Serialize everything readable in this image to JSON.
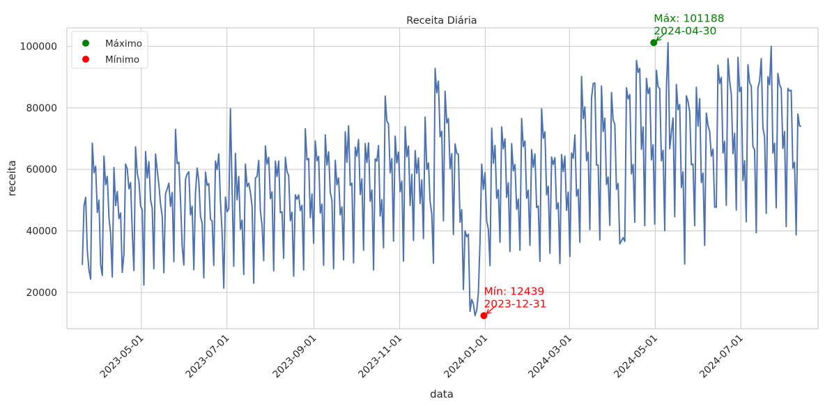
{
  "chart_data": {
    "type": "line",
    "title": "Receita Diária",
    "xlabel": "data",
    "ylabel": "receita",
    "grid": true,
    "legend_position": "top-left",
    "x_range": [
      "2023-03-09",
      "2024-08-25"
    ],
    "ylim": [
      8200,
      106000
    ],
    "x_ticks": [
      "2023-05-01",
      "2023-07-01",
      "2023-09-01",
      "2023-11-01",
      "2024-01-01",
      "2024-03-01",
      "2024-05-01",
      "2024-07-01"
    ],
    "y_ticks": [
      20000,
      40000,
      60000,
      80000,
      100000
    ],
    "y_tick_labels": [
      "20000",
      "40000",
      "60000",
      "80000",
      "100000"
    ],
    "line_color": "#4c72b0",
    "series": [
      {
        "start_date": "2023-03-20",
        "end_date": "2024-08-13",
        "values": [
          28900,
          48100,
          50900,
          33500,
          27200,
          24300,
          68500,
          58900,
          61000,
          46000,
          50000,
          29000,
          25500,
          64300,
          55000,
          57700,
          44500,
          39000,
          25000,
          60600,
          48200,
          52800,
          44000,
          45800,
          26500,
          32500,
          61700,
          60200,
          53700,
          55700,
          39700,
          27100,
          67300,
          58700,
          56200,
          48100,
          46900,
          22400,
          65800,
          57200,
          62500,
          50200,
          47300,
          27700,
          65000,
          59800,
          55000,
          48700,
          44800,
          26400,
          52100,
          53600,
          55500,
          48000,
          52500,
          30000,
          73000,
          61900,
          62300,
          50000,
          35000,
          28900,
          56700,
          58500,
          59200,
          45200,
          48000,
          27400,
          52300,
          60400,
          56200,
          44800,
          42500,
          24700,
          59100,
          54800,
          55400,
          43800,
          43200,
          28800,
          62700,
          59900,
          65000,
          49600,
          39400,
          21400,
          51000,
          46200,
          47200,
          79700,
          53700,
          28500,
          65200,
          50100,
          57700,
          40500,
          43500,
          25800,
          61700,
          54400,
          55500,
          52500,
          48000,
          23000,
          57200,
          57700,
          62900,
          46500,
          41800,
          30300,
          67600,
          61700,
          63900,
          50500,
          52700,
          27000,
          62700,
          57700,
          62700,
          45900,
          46200,
          31100,
          63900,
          59300,
          58000,
          43300,
          46100,
          25300,
          51700,
          50300,
          51700,
          46600,
          48300,
          27300,
          73200,
          63100,
          63500,
          44300,
          52000,
          36000,
          69200,
          62800,
          64200,
          45800,
          48700,
          28800,
          71200,
          61400,
          65700,
          52500,
          50000,
          27700,
          62900,
          55000,
          57200,
          45200,
          47800,
          30600,
          72200,
          62300,
          74200,
          54800,
          55500,
          29600,
          67200,
          64300,
          69700,
          51800,
          56900,
          33700,
          68400,
          62200,
          68600,
          49600,
          53300,
          27300,
          63400,
          62700,
          67700,
          44800,
          50200,
          34500,
          83800,
          75700,
          74800,
          58900,
          63500,
          36700,
          70800,
          62100,
          65600,
          52700,
          56200,
          30200,
          73900,
          64100,
          67600,
          48300,
          58400,
          36900,
          66100,
          58700,
          63700,
          48900,
          56600,
          37500,
          77000,
          60000,
          62100,
          49600,
          45500,
          29500,
          92800,
          84900,
          88700,
          70600,
          72400,
          43300,
          85400,
          75100,
          76500,
          60200,
          65100,
          38800,
          68300,
          65200,
          64900,
          42800,
          46900,
          20900,
          40000,
          38100,
          38900,
          13800,
          17700,
          16300,
          12439,
          14200,
          19800,
          36900,
          61700,
          53500,
          58900,
          43300,
          40500,
          28700,
          73400,
          62000,
          67800,
          50600,
          53400,
          36300,
          73800,
          66700,
          69900,
          50900,
          55600,
          33300,
          68400,
          59500,
          61600,
          47000,
          50300,
          33700,
          76500,
          67400,
          69200,
          50600,
          53200,
          35300,
          66400,
          60700,
          65000,
          47600,
          48100,
          30100,
          79700,
          70100,
          72200,
          51700,
          54500,
          32700,
          64000,
          61600,
          63800,
          47100,
          49100,
          29400,
          64800,
          59300,
          64300,
          46700,
          52600,
          31700,
          65300,
          63600,
          71200,
          51300,
          53500,
          36300,
          90200,
          76500,
          80300,
          62800,
          65600,
          40400,
          83100,
          87900,
          88100,
          61400,
          61400,
          37000,
          87100,
          72300,
          76600,
          55100,
          57500,
          41800,
          85000,
          76000,
          74700,
          53500,
          55400,
          35800,
          36800,
          37800,
          36600,
          86500,
          82900,
          84300,
          58500,
          61600,
          42800,
          95400,
          91500,
          92800,
          66500,
          73800,
          41700,
          89600,
          84600,
          86500,
          63100,
          68000,
          42200,
          92200,
          86900,
          86200,
          62800,
          66200,
          40100,
          86100,
          101188,
          66700,
          72000,
          76700,
          44600,
          87600,
          79400,
          81100,
          54100,
          59200,
          29200,
          83900,
          82100,
          78600,
          61500,
          61700,
          41700,
          86700,
          74000,
          83000,
          55700,
          58800,
          35300,
          78300,
          74300,
          72300,
          64300,
          66600,
          47700,
          47700,
          93900,
          87900,
          89900,
          65300,
          69100,
          48300,
          96000,
          88800,
          84500,
          65100,
          71700,
          46800,
          96400,
          85300,
          86700,
          56400,
          62800,
          43000,
          94000,
          88300,
          87100,
          67500,
          66300,
          39400,
          86500,
          88700,
          96000,
          73500,
          70600,
          45700,
          90100,
          87500,
          100000,
          65300,
          68500,
          47500,
          91200,
          87600,
          86300,
          66800,
          72300,
          41400,
          86300,
          85500,
          85700,
          60400,
          62300,
          38700,
          78000,
          74100,
          74000
        ]
      }
    ],
    "annotations": [
      {
        "kind": "max",
        "date": "2024-04-30",
        "value": 101188,
        "label": "Máx: 101188",
        "date_label": "2024-04-30",
        "color": "#008000"
      },
      {
        "kind": "min",
        "date": "2023-12-31",
        "value": 12439,
        "label": "Mín: 12439",
        "date_label": "2023-12-31",
        "color": "#ff0000"
      }
    ],
    "legend": [
      {
        "label": "Máximo",
        "color": "#008000"
      },
      {
        "label": "Mínimo",
        "color": "#ff0000"
      }
    ]
  }
}
